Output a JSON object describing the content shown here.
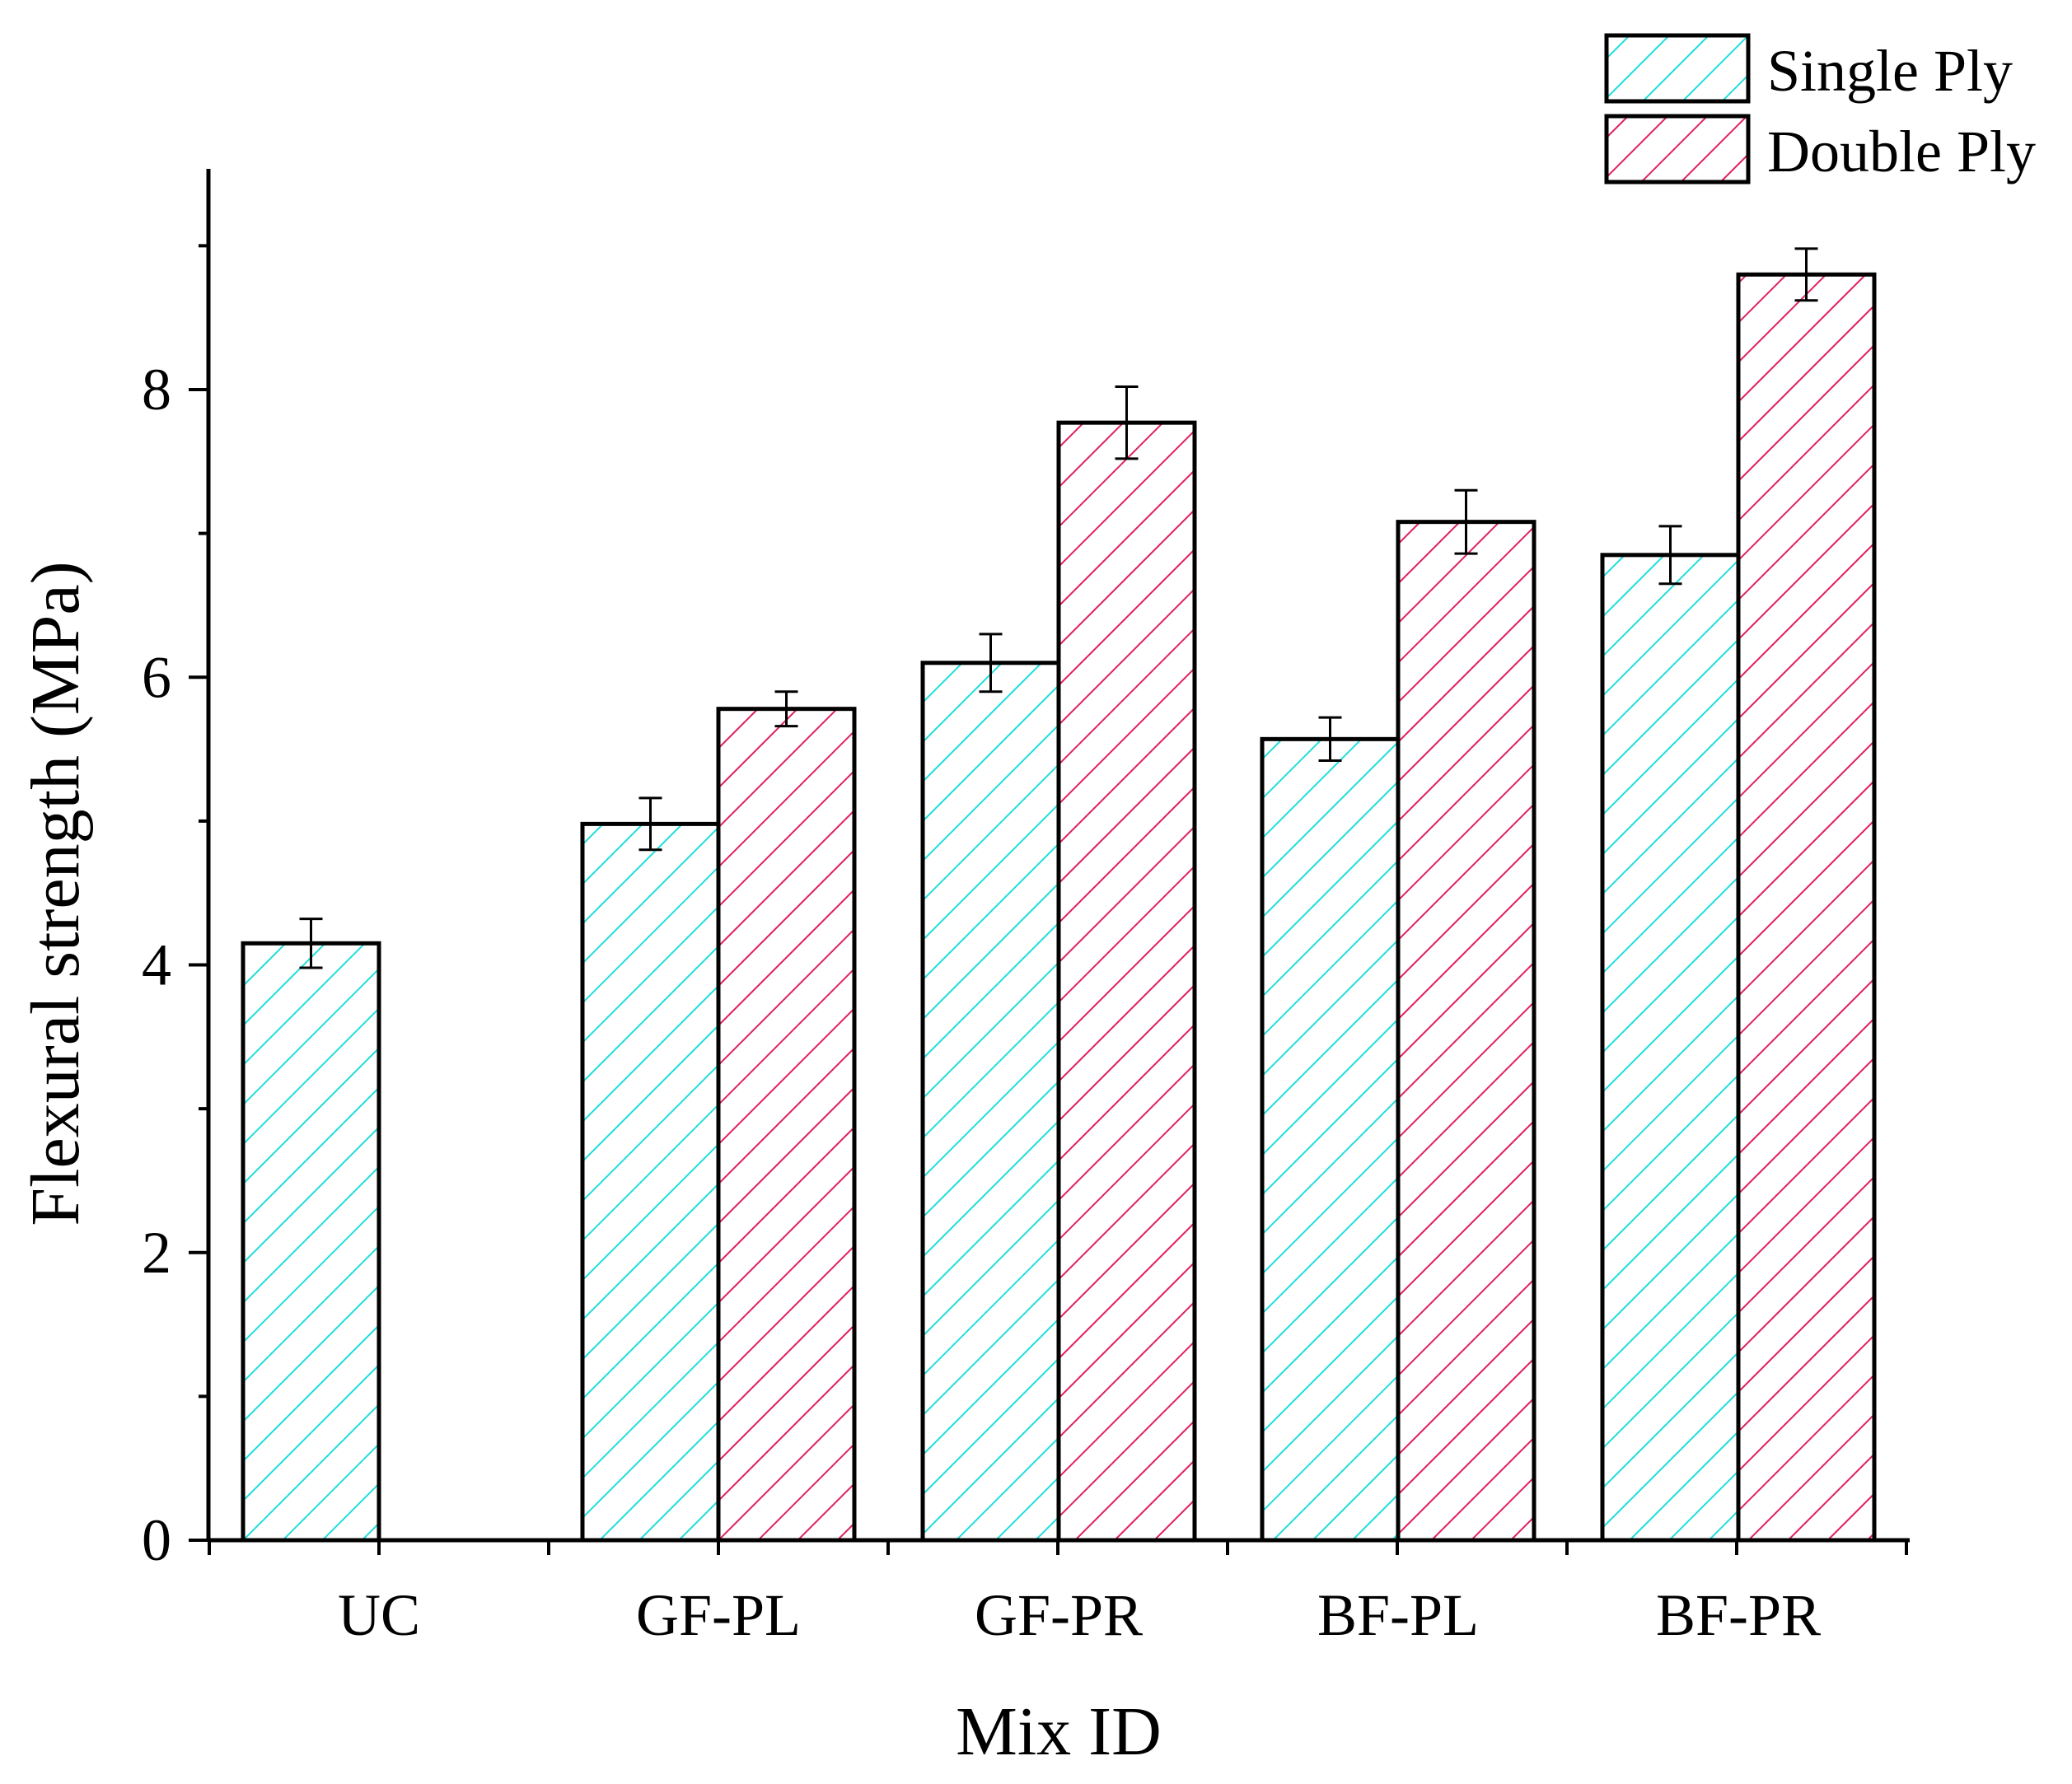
{
  "chart_data": {
    "type": "bar",
    "title": "",
    "xlabel": "Mix ID",
    "ylabel": "Flexural strength (MPa)",
    "ylim": [
      0,
      9.5
    ],
    "yticks": [
      0,
      2,
      4,
      6,
      8
    ],
    "grid": false,
    "legend_position": "top-right",
    "categories": [
      "UC",
      "GF-PL",
      "GF-PR",
      "BF-PL",
      "BF-PR"
    ],
    "series": [
      {
        "name": "Single Ply",
        "color": "#22dddd",
        "values": [
          4.15,
          4.98,
          6.1,
          5.57,
          6.85
        ],
        "errors": [
          0.17,
          0.18,
          0.2,
          0.15,
          0.2
        ]
      },
      {
        "name": "Double Ply",
        "color": "#e0205f",
        "values": [
          null,
          5.78,
          7.77,
          7.08,
          8.8
        ],
        "errors": [
          null,
          0.12,
          0.25,
          0.22,
          0.18
        ]
      }
    ]
  }
}
